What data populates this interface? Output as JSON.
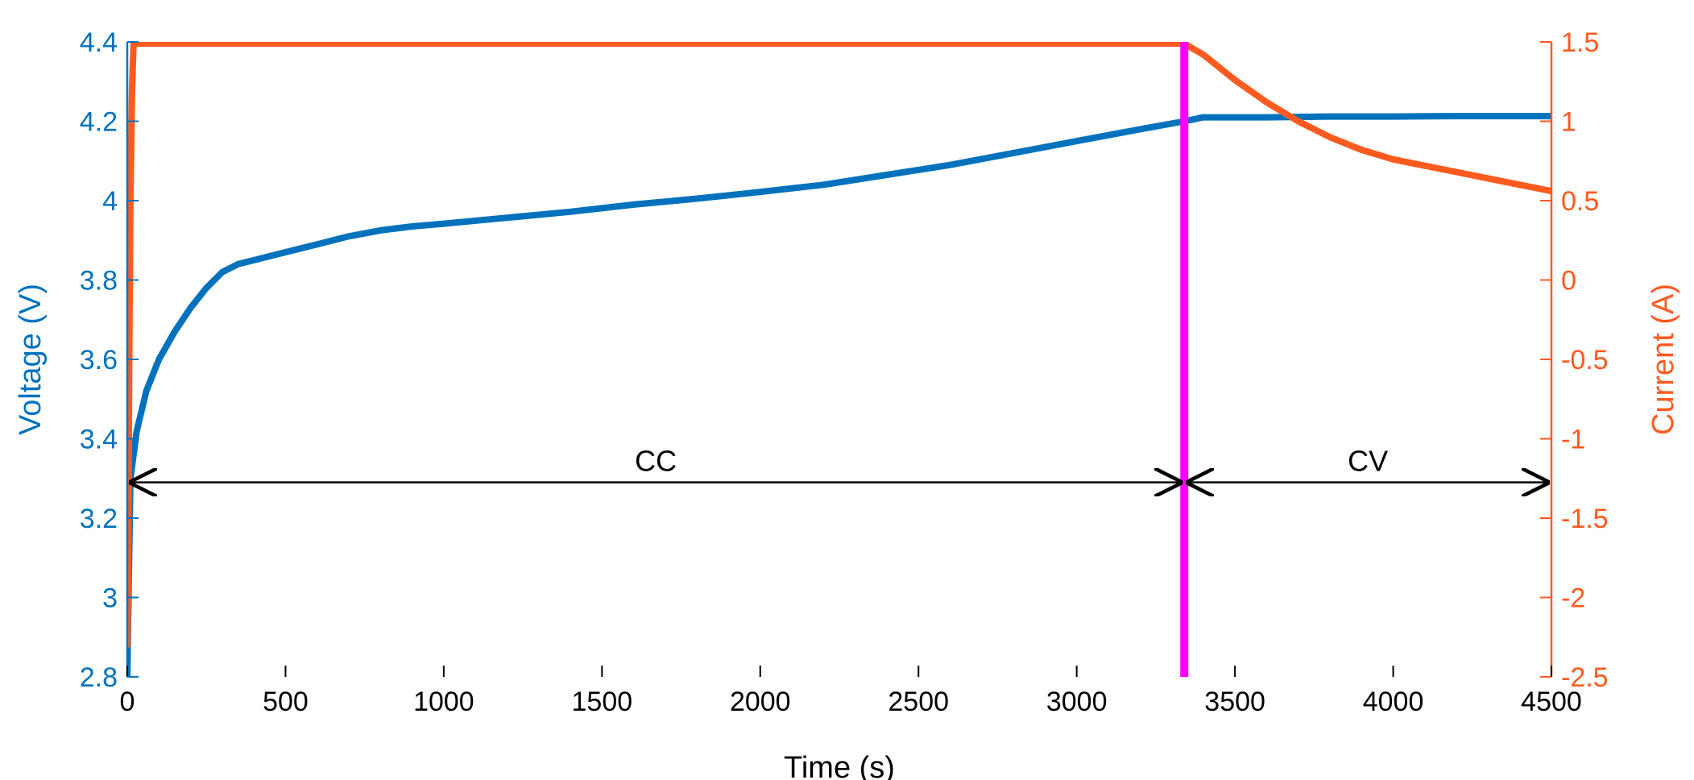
{
  "chart_data": {
    "type": "line",
    "xlabel": "Time (s)",
    "ylabel_left": "Voltage (V)",
    "ylabel_right": "Current (A)",
    "xlim": [
      0,
      4500
    ],
    "ylim_left": [
      2.8,
      4.4
    ],
    "ylim_right": [
      -2.5,
      1.5
    ],
    "x_ticks": [
      0,
      500,
      1000,
      1500,
      2000,
      2500,
      3000,
      3500,
      4000,
      4500
    ],
    "y_left_ticks": [
      2.8,
      3,
      3.2,
      3.4,
      3.6,
      3.8,
      4,
      4.2,
      4.4
    ],
    "y_right_ticks": [
      -2.5,
      -2,
      -1.5,
      -1,
      -0.5,
      0,
      0.5,
      1,
      1.5
    ],
    "x_tick_labels": [
      "0",
      "500",
      "1000",
      "1500",
      "2000",
      "2500",
      "3000",
      "3500",
      "4000",
      "4500"
    ],
    "y_left_tick_labels": [
      "2.8",
      "3",
      "3.2",
      "3.4",
      "3.6",
      "3.8",
      "4",
      "4.2",
      "4.4"
    ],
    "y_right_tick_labels": [
      "-2.5",
      "-2",
      "-1.5",
      "-1",
      "-0.5",
      "0",
      "0.5",
      "1",
      "1.5"
    ],
    "grid": false,
    "legend": "none",
    "colors": {
      "voltage": "#0072BD",
      "current": "#FF5A1F",
      "divider": "#FF00FF",
      "annotation": "#000000"
    },
    "series": [
      {
        "axis": "left",
        "x": [
          0,
          10,
          30,
          60,
          100,
          150,
          200,
          250,
          300,
          350,
          400,
          500,
          600,
          700,
          800,
          900,
          1000,
          1200,
          1400,
          1600,
          1800,
          2000,
          2200,
          2400,
          2600,
          2800,
          3000,
          3200,
          3340,
          3400,
          3600,
          3800,
          4000,
          4200,
          4500
        ],
        "y": [
          2.8,
          3.3,
          3.42,
          3.52,
          3.6,
          3.67,
          3.73,
          3.78,
          3.82,
          3.84,
          3.85,
          3.87,
          3.89,
          3.91,
          3.925,
          3.935,
          3.942,
          3.957,
          3.972,
          3.99,
          4.005,
          4.022,
          4.04,
          4.065,
          4.09,
          4.12,
          4.15,
          4.18,
          4.2,
          4.21,
          4.21,
          4.212,
          4.212,
          4.213,
          4.213
        ]
      },
      {
        "axis": "right",
        "x": [
          0,
          3,
          6,
          10,
          15,
          20,
          25,
          30,
          50,
          1000,
          2000,
          3000,
          3300,
          3340,
          3400,
          3500,
          3600,
          3700,
          3800,
          3900,
          4000,
          4100,
          4200,
          4300,
          4400,
          4500
        ],
        "y": [
          -2.3,
          -1.9,
          -0.5,
          0.5,
          1.2,
          1.5,
          1.49,
          1.49,
          1.49,
          1.49,
          1.49,
          1.49,
          1.49,
          1.49,
          1.42,
          1.26,
          1.12,
          1.0,
          0.9,
          0.82,
          0.76,
          0.72,
          0.68,
          0.64,
          0.6,
          0.56
        ]
      }
    ],
    "divider_x": 3340,
    "annotations": [
      {
        "text": "CC",
        "x_start": 0,
        "x_end": 3340,
        "y_left": 3.29
      },
      {
        "text": "CV",
        "x_start": 3340,
        "x_end": 4500,
        "y_left": 3.29
      }
    ]
  }
}
